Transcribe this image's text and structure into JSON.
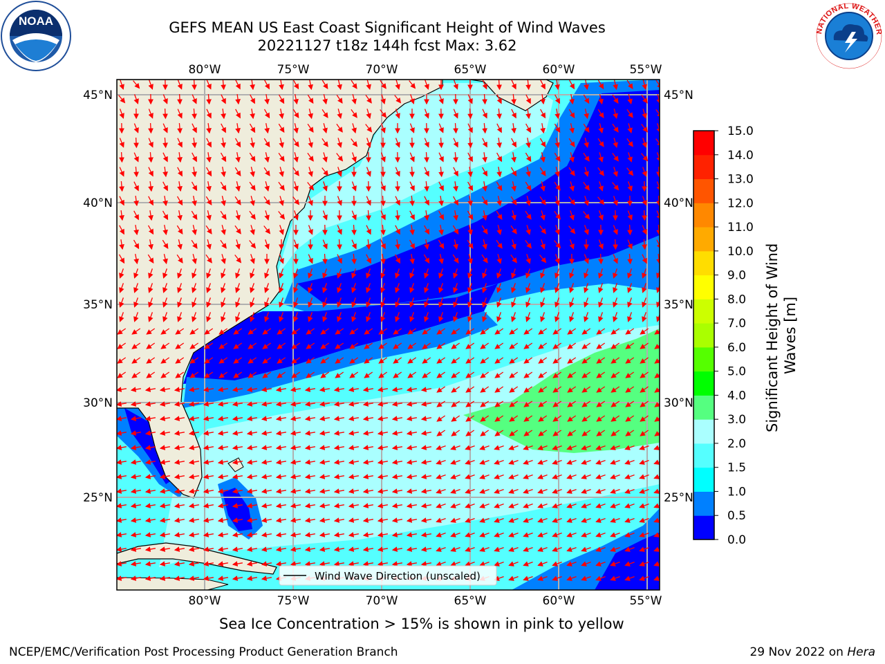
{
  "header": {
    "title_line1": "GEFS MEAN US East Coast Significant Height of Wind Waves",
    "title_line2": "20221127 t18z 144h fcst   Max: 3.62"
  },
  "logos": {
    "noaa_text": "NOAA",
    "nws_text": "NATIONAL WEATHER SERVICE"
  },
  "map": {
    "lon_labels": [
      "80°W",
      "75°W",
      "70°W",
      "65°W",
      "60°W",
      "55°W"
    ],
    "lat_labels": [
      "45°N",
      "40°N",
      "35°N",
      "30°N",
      "25°N"
    ],
    "legend_label": "Wind Wave Direction (unscaled)",
    "arrow_color": "#ff0000",
    "land_color": "#efeddc",
    "grid_color": "#b0b0b0"
  },
  "colorbar": {
    "title": "Significant Height of Wind Waves [m]",
    "ticks": [
      "15.0",
      "14.0",
      "13.0",
      "12.0",
      "11.0",
      "10.0",
      "9.0",
      "8.0",
      "7.0",
      "6.0",
      "5.0",
      "4.0",
      "3.0",
      "2.0",
      "1.5",
      "1.0",
      "0.5",
      "0.0"
    ],
    "colors": [
      "#0000ff",
      "#0080ff",
      "#00ffff",
      "#55ffff",
      "#aaffff",
      "#55ff80",
      "#00ff00",
      "#55ff00",
      "#aaff00",
      "#ccff00",
      "#ffff00",
      "#ffdd00",
      "#ffaa00",
      "#ff8800",
      "#ff5500",
      "#ff2200",
      "#ff0000"
    ]
  },
  "footer": {
    "note": "Sea Ice Concentration > 15% is shown in pink to yellow",
    "credit": "NCEP/EMC/Verification Post Processing Product Generation Branch",
    "date": "29 Nov 2022 on",
    "host": "Hera"
  }
}
